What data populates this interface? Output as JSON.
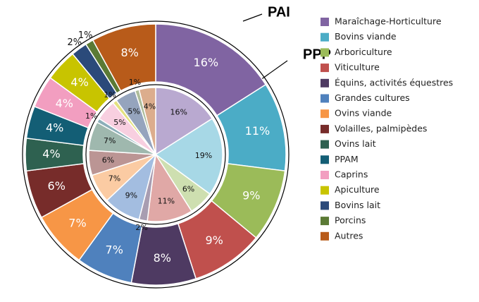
{
  "chart_data": {
    "type": "pie",
    "categories": [
      "Maraîchage-Horticulture",
      "Bovins viande",
      "Arboriculture",
      "Viticulture",
      "Équins, activités équestres",
      "Grandes cultures",
      "Ovins viande",
      "Volailles, palmipèdes",
      "Ovins lait",
      "PPAM",
      "Caprins",
      "Apiculture",
      "Bovins lait",
      "Porcins",
      "Autres"
    ],
    "series": [
      {
        "name": "PAI",
        "colors": [
          "#8064a2",
          "#4bacc6",
          "#9bbb59",
          "#c0504d",
          "#4e3a62",
          "#4f81bd",
          "#f79646",
          "#772c2a",
          "#2e6150",
          "#135e75",
          "#f29ec0",
          "#c8c400",
          "#2b4a7a",
          "#5b7a35",
          "#b85b1a"
        ],
        "values": [
          16,
          11,
          9,
          9,
          8,
          7,
          7,
          6,
          4,
          4,
          4,
          4,
          2,
          1,
          8
        ],
        "value_labels": [
          "16%",
          "11%",
          "9%",
          "9%",
          "8%",
          "7%",
          "7%",
          "6%",
          "4%",
          "4%",
          "4%",
          "4%",
          "2%",
          "1%",
          "8%"
        ]
      },
      {
        "name": "PPP",
        "colors": [
          "#b9a9d0",
          "#a7d8e6",
          "#cedfb0",
          "#e0a8a6",
          "#a89db1",
          "#a3bde0",
          "#fbcba3",
          "#bb9594",
          "#9fb8ae",
          "#8caeb9",
          "#f8cfe0",
          "#e4e280",
          "#95a4bd",
          "#adbc9a",
          "#dcad8d"
        ],
        "values": [
          16,
          19,
          6,
          11,
          2,
          9,
          7,
          6,
          7,
          1,
          5,
          1,
          5,
          1,
          4
        ],
        "value_labels": [
          "16%",
          "19%",
          "6%",
          "11%",
          "2%",
          "9%",
          "7%",
          "6%",
          "7%",
          "1%",
          "5%",
          "1%",
          "5%",
          "1%",
          "4%"
        ]
      }
    ]
  }
}
